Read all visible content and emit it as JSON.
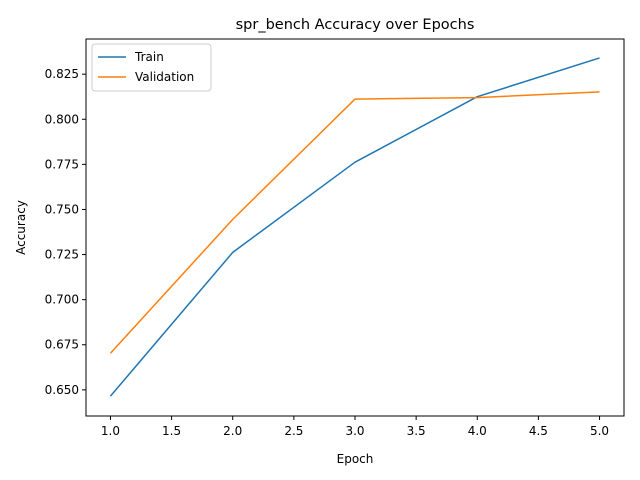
{
  "chart_data": {
    "type": "line",
    "title": "spr_bench Accuracy over Epochs",
    "xlabel": "Epoch",
    "ylabel": "Accuracy",
    "x": [
      1,
      2,
      3,
      4,
      5
    ],
    "xlim": [
      0.8,
      5.2
    ],
    "ylim": [
      0.6355,
      0.8445
    ],
    "xticks": [
      "1.0",
      "1.5",
      "2.0",
      "2.5",
      "3.0",
      "3.5",
      "4.0",
      "4.5",
      "5.0"
    ],
    "yticks": [
      "0.650",
      "0.675",
      "0.700",
      "0.725",
      "0.750",
      "0.775",
      "0.800",
      "0.825"
    ],
    "grid": false,
    "legend_position": "upper-left",
    "series": [
      {
        "name": "Train",
        "color": "#1f77b4",
        "values": [
          0.6465,
          0.7262,
          0.7762,
          0.8125,
          0.834
        ]
      },
      {
        "name": "Validation",
        "color": "#ff7f0e",
        "values": [
          0.6703,
          0.7445,
          0.8112,
          0.812,
          0.8152
        ]
      }
    ]
  }
}
